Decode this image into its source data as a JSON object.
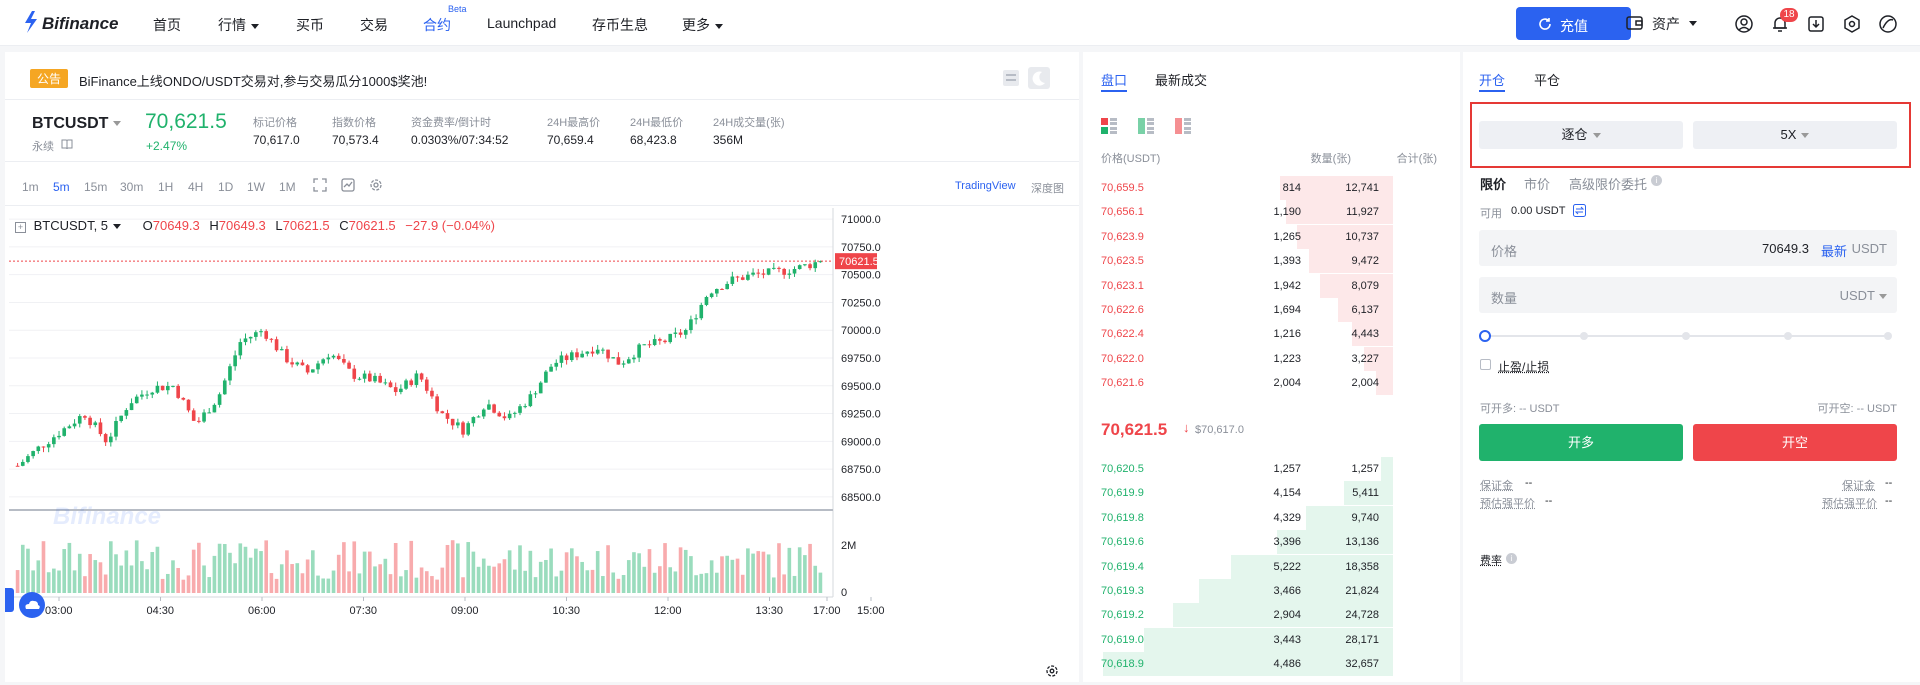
{
  "header": {
    "logo_text": "Bifinance",
    "nav": [
      {
        "label": "首页"
      },
      {
        "label": "行情"
      },
      {
        "label": "买币"
      },
      {
        "label": "交易"
      },
      {
        "label": "合约",
        "badge": "Beta"
      },
      {
        "label": "Launchpad"
      },
      {
        "label": "存币生息"
      },
      {
        "label": "更多"
      }
    ],
    "deposit_label": "充值",
    "assets_label": "资产",
    "notification_count": "18"
  },
  "announcement": {
    "tag": "公告",
    "text": "BiFinance上线ONDO/USDT交易对,参与交易瓜分1000$奖池!"
  },
  "ticker": {
    "symbol": "BTCUSDT",
    "contract_type": "永续",
    "last_price": "70,621.5",
    "change_pct": "+2.47%",
    "stats": [
      {
        "label": "标记价格",
        "value": "70,617.0"
      },
      {
        "label": "指数价格",
        "value": "70,573.4"
      },
      {
        "label": "资金费率/倒计时",
        "value": "0.0303%/07:34:52"
      },
      {
        "label": "24H最高价",
        "value": "70,659.4"
      },
      {
        "label": "24H最低价",
        "value": "68,423.8"
      },
      {
        "label": "24H成交量(张)",
        "value": "356M"
      }
    ]
  },
  "chart_toolbar": {
    "intervals": [
      "1m",
      "5m",
      "15m",
      "30m",
      "1H",
      "4H",
      "1D",
      "1W",
      "1M"
    ],
    "active_interval": "5m",
    "tradingview_label": "TradingView",
    "depth_label": "深度图"
  },
  "chart_legend": {
    "symbol": "BTCUSDT, 5",
    "o": "70649.3",
    "h": "70649.3",
    "l": "70621.5",
    "c": "70621.5",
    "change": "−27.9 (−0.04%)"
  },
  "chart_watermark": "Bifinance",
  "chart_data": {
    "type": "candlestick",
    "y_ticks": [
      "71000.0",
      "70750.0",
      "70500.0",
      "70250.0",
      "70000.0",
      "69750.0",
      "69500.0",
      "69250.0",
      "69000.0",
      "68750.0",
      "68500.0"
    ],
    "ylim": [
      68400,
      71100
    ],
    "x_ticks": [
      "03:00",
      "04:30",
      "06:00",
      "07:30",
      "09:00",
      "10:30",
      "12:00",
      "13:30",
      "15:00",
      "17:00"
    ],
    "current_price_label": "70621.5",
    "volume_ticks": [
      "2M",
      "0"
    ],
    "trend_keypoints": [
      68780,
      68950,
      69100,
      69250,
      69000,
      69350,
      69480,
      69500,
      69150,
      69400,
      69900,
      70000,
      69750,
      69620,
      69800,
      69600,
      69550,
      69450,
      69600,
      69250,
      69100,
      69350,
      69200,
      69400,
      69700,
      69780,
      69850,
      69700,
      69850,
      69900,
      70000,
      70350,
      70450,
      70500,
      70520,
      70560,
      70621.5
    ]
  },
  "orderbook": {
    "tabs": [
      "盘口",
      "最新成交"
    ],
    "headers": [
      "价格(USDT)",
      "数量(张)",
      "合计(张)"
    ],
    "asks": [
      {
        "price": "70,659.5",
        "qty": "814",
        "total": "12,741",
        "depth": 0.39
      },
      {
        "price": "70,656.1",
        "qty": "1,190",
        "total": "11,927",
        "depth": 0.37
      },
      {
        "price": "70,623.9",
        "qty": "1,265",
        "total": "10,737",
        "depth": 0.33
      },
      {
        "price": "70,623.5",
        "qty": "1,393",
        "total": "9,472",
        "depth": 0.29
      },
      {
        "price": "70,623.1",
        "qty": "1,942",
        "total": "8,079",
        "depth": 0.25
      },
      {
        "price": "70,622.6",
        "qty": "1,694",
        "total": "6,137",
        "depth": 0.19
      },
      {
        "price": "70,622.4",
        "qty": "1,216",
        "total": "4,443",
        "depth": 0.14
      },
      {
        "price": "70,622.0",
        "qty": "1,223",
        "total": "3,227",
        "depth": 0.1
      },
      {
        "price": "70,621.6",
        "qty": "2,004",
        "total": "2,004",
        "depth": 0.06
      }
    ],
    "mid_price": "70,621.5",
    "mid_mark": "$70,617.0",
    "bids": [
      {
        "price": "70,620.5",
        "qty": "1,257",
        "total": "1,257",
        "depth": 0.04
      },
      {
        "price": "70,619.9",
        "qty": "4,154",
        "total": "5,411",
        "depth": 0.17
      },
      {
        "price": "70,619.8",
        "qty": "4,329",
        "total": "9,740",
        "depth": 0.3
      },
      {
        "price": "70,619.6",
        "qty": "3,396",
        "total": "13,136",
        "depth": 0.4
      },
      {
        "price": "70,619.4",
        "qty": "5,222",
        "total": "18,358",
        "depth": 0.56
      },
      {
        "price": "70,619.3",
        "qty": "3,466",
        "total": "21,824",
        "depth": 0.67
      },
      {
        "price": "70,619.2",
        "qty": "2,904",
        "total": "24,728",
        "depth": 0.76
      },
      {
        "price": "70,619.0",
        "qty": "3,443",
        "total": "28,171",
        "depth": 0.86
      },
      {
        "price": "70,618.9",
        "qty": "4,486",
        "total": "32,657",
        "depth": 1.0
      }
    ]
  },
  "trade": {
    "tabs": [
      "开仓",
      "平仓"
    ],
    "margin_mode": "逐仓",
    "leverage": "5X",
    "order_types": [
      "限价",
      "市价",
      "高级限价委托"
    ],
    "available_label": "可用",
    "available_value": "0.00 USDT",
    "price_label": "价格",
    "price_value": "70649.3",
    "latest_label": "最新",
    "unit": "USDT",
    "qty_label": "数量",
    "tpsl_label": "止盈/止损",
    "can_long_label": "可开多: -- USDT",
    "can_short_label": "可开空: -- USDT",
    "long_button": "开多",
    "short_button": "开空",
    "margin_label": "保证金",
    "liq_label": "预估强平价",
    "dash": "--",
    "fee_label": "费率"
  },
  "colors": {
    "brand": "#2b62f0",
    "up": "#20b26c",
    "down": "#ef454a",
    "highlight_border": "#e53935"
  }
}
